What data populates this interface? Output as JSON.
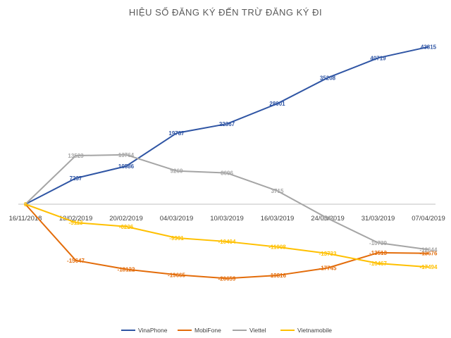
{
  "chart_data": {
    "type": "line",
    "title": "HIỆU SỐ ĐĂNG KÝ ĐẾN TRỪ ĐĂNG KÝ ĐI",
    "xlabel": "",
    "ylabel": "",
    "categories": [
      "16/11/2018",
      "13/02/2019",
      "20/02/2019",
      "04/03/2019",
      "10/03/2019",
      "16/03/2019",
      "24/03/2019",
      "31/03/2019",
      "07/04/2019"
    ],
    "ylim": [
      -25000,
      50000
    ],
    "grid": false,
    "legend_position": "bottom",
    "series": [
      {
        "name": "VinaPhone",
        "color": "#2F55A4",
        "values": [
          0,
          7237,
          10586,
          19787,
          22367,
          28001,
          35208,
          40719,
          43815
        ],
        "labels": [
          "",
          "7237",
          "10586",
          "19787",
          "22367",
          "28001",
          "35208",
          "40719",
          "43815"
        ]
      },
      {
        "name": "MobiFone",
        "color": "#E36C0A",
        "values": [
          0,
          -15647,
          -18122,
          -19665,
          -20659,
          -19816,
          -17745,
          -13513,
          -13676
        ],
        "labels": [
          "",
          "-15647",
          "-18122",
          "-19665",
          "-20659",
          "-19816",
          "-17745",
          "-13513",
          "-13676"
        ]
      },
      {
        "name": "Viettel",
        "color": "#A5A5A5",
        "values": [
          0,
          13523,
          13764,
          9269,
          8696,
          3715,
          -3952,
          -10739,
          -12644
        ],
        "labels": [
          "",
          "13523",
          "13764",
          "9269",
          "8696",
          "3715",
          "-3952",
          "-10739",
          "-12644"
        ]
      },
      {
        "name": "Vietnamobile",
        "color": "#FFC000",
        "values": [
          0,
          -5113,
          -6226,
          -9391,
          -10404,
          -11908,
          -13733,
          -16467,
          -17494
        ],
        "labels": [
          "0",
          "-5113",
          "-6226",
          "-9391",
          "-10404",
          "-11908",
          "-13733",
          "-16467",
          "-17494"
        ]
      }
    ]
  }
}
